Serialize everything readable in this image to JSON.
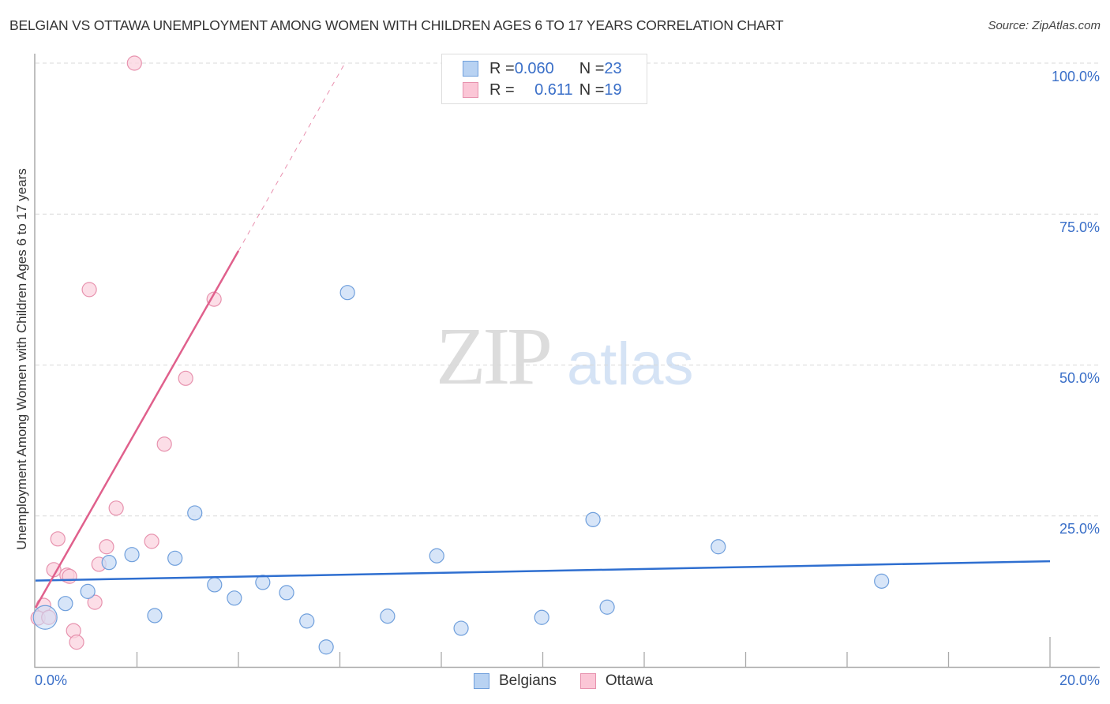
{
  "header": {
    "title": "BELGIAN VS OTTAWA UNEMPLOYMENT AMONG WOMEN WITH CHILDREN AGES 6 TO 17 YEARS CORRELATION CHART",
    "source": "Source: ZipAtlas.com"
  },
  "watermark": {
    "zip": "ZIP",
    "atlas": "atlas"
  },
  "legend_top": {
    "rows": [
      {
        "r_label": "R = ",
        "r_value": "0.060",
        "n_label": "N = ",
        "n_value": "23",
        "color": "#b8d2f2",
        "border": "#6f9fdc"
      },
      {
        "r_label": "R = ",
        "r_value": "0.611",
        "n_label": "N = ",
        "n_value": "19",
        "color": "#fbc6d6",
        "border": "#e792ae"
      }
    ]
  },
  "legend_bottom": {
    "items": [
      {
        "label": "Belgians",
        "color": "#b8d2f2",
        "border": "#6f9fdc"
      },
      {
        "label": "Ottawa",
        "color": "#fbc6d6",
        "border": "#e792ae"
      }
    ]
  },
  "axes": {
    "ylabel": "Unemployment Among Women with Children Ages 6 to 17 years",
    "y_ticks": [
      "100.0%",
      "75.0%",
      "50.0%",
      "25.0%"
    ],
    "x_ticks": [
      "0.0%",
      "20.0%"
    ]
  },
  "colors": {
    "belgians_fill": "#c9dcf5",
    "belgians_stroke": "#6f9fdc",
    "belgians_line": "#2f6fd0",
    "ottawa_fill": "#fbd3df",
    "ottawa_stroke": "#e792ae",
    "ottawa_line": "#e0608c",
    "tick_label": "#3a6fc8"
  },
  "chart_data": {
    "type": "scatter",
    "title": "BELGIAN VS OTTAWA UNEMPLOYMENT AMONG WOMEN WITH CHILDREN AGES 6 TO 17 YEARS CORRELATION CHART",
    "xlabel": "",
    "ylabel": "Unemployment Among Women with Children Ages 6 to 17 years",
    "xlim": [
      0,
      20
    ],
    "ylim": [
      0,
      100
    ],
    "x_tick_labels": [
      "0.0%",
      "20.0%"
    ],
    "y_tick_labels": [
      "25.0%",
      "50.0%",
      "75.0%",
      "100.0%"
    ],
    "grid": "horizontal dashed",
    "legend_position": "top-center and bottom",
    "series": [
      {
        "name": "Belgians",
        "R": 0.06,
        "N": 23,
        "trend": {
          "x": [
            0,
            20
          ],
          "y": [
            14.3,
            17.5
          ]
        },
        "points": [
          {
            "x": 0.19,
            "y": 8.2,
            "big": true
          },
          {
            "x": 0.59,
            "y": 10.5
          },
          {
            "x": 1.03,
            "y": 12.5
          },
          {
            "x": 1.45,
            "y": 17.3
          },
          {
            "x": 1.9,
            "y": 18.6
          },
          {
            "x": 2.35,
            "y": 8.5
          },
          {
            "x": 2.75,
            "y": 18.0
          },
          {
            "x": 3.14,
            "y": 25.5
          },
          {
            "x": 3.53,
            "y": 13.6
          },
          {
            "x": 3.92,
            "y": 11.4
          },
          {
            "x": 4.48,
            "y": 14.0
          },
          {
            "x": 4.95,
            "y": 12.3
          },
          {
            "x": 5.35,
            "y": 7.6
          },
          {
            "x": 5.73,
            "y": 3.3
          },
          {
            "x": 6.15,
            "y": 62.0
          },
          {
            "x": 6.94,
            "y": 8.4
          },
          {
            "x": 7.91,
            "y": 18.4
          },
          {
            "x": 8.39,
            "y": 6.4
          },
          {
            "x": 9.98,
            "y": 8.2
          },
          {
            "x": 10.99,
            "y": 24.4
          },
          {
            "x": 11.27,
            "y": 9.9
          },
          {
            "x": 13.46,
            "y": 19.9
          },
          {
            "x": 16.68,
            "y": 14.2
          }
        ]
      },
      {
        "name": "Ottawa",
        "R": 0.611,
        "N": 19,
        "trend": {
          "x": [
            0,
            4.0
          ],
          "y": [
            9.8,
            68.9
          ],
          "dashed_to": {
            "x": 6.1,
            "y": 100
          }
        },
        "points": [
          {
            "x": 1.95,
            "y": 100.0
          },
          {
            "x": 1.06,
            "y": 62.5
          },
          {
            "x": 3.52,
            "y": 60.9
          },
          {
            "x": 2.96,
            "y": 47.8
          },
          {
            "x": 2.54,
            "y": 36.9
          },
          {
            "x": 1.59,
            "y": 26.3
          },
          {
            "x": 0.44,
            "y": 21.2
          },
          {
            "x": 1.4,
            "y": 19.9
          },
          {
            "x": 2.29,
            "y": 20.8
          },
          {
            "x": 0.36,
            "y": 16.1
          },
          {
            "x": 1.25,
            "y": 17.0
          },
          {
            "x": 0.62,
            "y": 15.2
          },
          {
            "x": 0.67,
            "y": 15.0
          },
          {
            "x": 1.17,
            "y": 10.7
          },
          {
            "x": 0.75,
            "y": 6.0
          },
          {
            "x": 0.81,
            "y": 4.1
          },
          {
            "x": 0.16,
            "y": 10.2
          },
          {
            "x": 0.05,
            "y": 8.1
          },
          {
            "x": 0.26,
            "y": 8.2
          }
        ]
      }
    ]
  }
}
